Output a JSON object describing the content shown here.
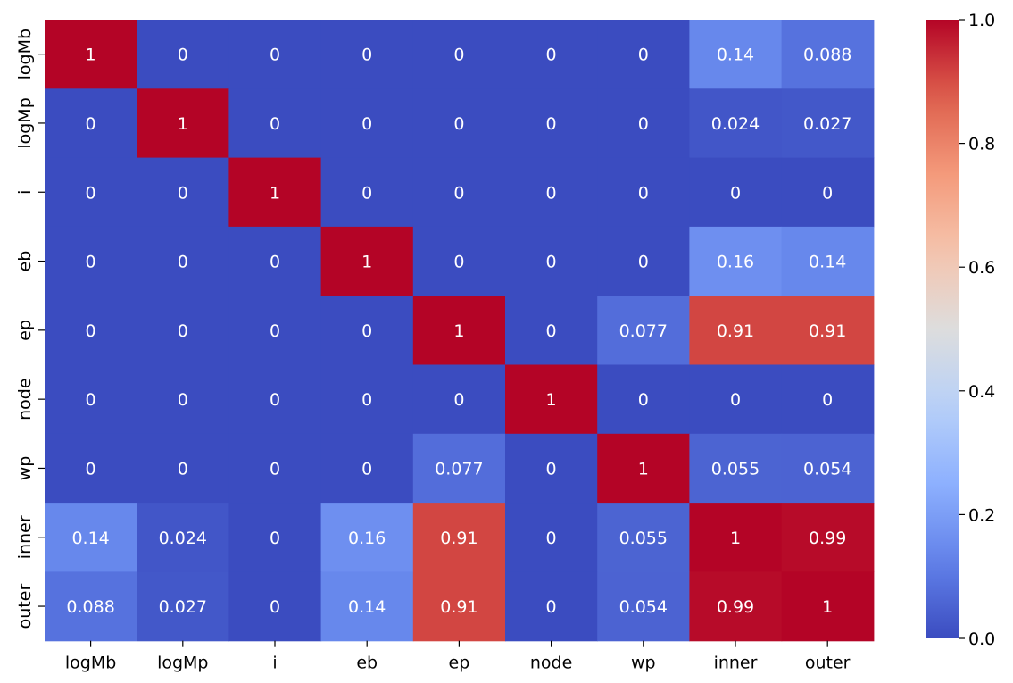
{
  "chart_data": {
    "type": "heatmap",
    "title": "",
    "xlabel": "",
    "ylabel": "",
    "colormap": "coolwarm",
    "vmin": 0.0,
    "vmax": 1.0,
    "x_categories": [
      "logMb",
      "logMp",
      "i",
      "eb",
      "ep",
      "node",
      "wp",
      "inner",
      "outer"
    ],
    "y_categories": [
      "logMb",
      "logMp",
      "i",
      "eb",
      "ep",
      "node",
      "wp",
      "inner",
      "outer"
    ],
    "values": [
      [
        1,
        0,
        0,
        0,
        0,
        0,
        0,
        0.14,
        0.088
      ],
      [
        0,
        1,
        0,
        0,
        0,
        0,
        0,
        0.024,
        0.027
      ],
      [
        0,
        0,
        1,
        0,
        0,
        0,
        0,
        0,
        0
      ],
      [
        0,
        0,
        0,
        1,
        0,
        0,
        0,
        0.16,
        0.14
      ],
      [
        0,
        0,
        0,
        0,
        1,
        0,
        0.077,
        0.91,
        0.91
      ],
      [
        0,
        0,
        0,
        0,
        0,
        1,
        0,
        0,
        0
      ],
      [
        0,
        0,
        0,
        0,
        0.077,
        0,
        1,
        0.055,
        0.054
      ],
      [
        0.14,
        0.024,
        0,
        0.16,
        0.91,
        0,
        0.055,
        1,
        0.99
      ],
      [
        0.088,
        0.027,
        0,
        0.14,
        0.91,
        0,
        0.054,
        0.99,
        1
      ]
    ],
    "annotations": [
      [
        "1",
        "0",
        "0",
        "0",
        "0",
        "0",
        "0",
        "0.14",
        "0.088"
      ],
      [
        "0",
        "1",
        "0",
        "0",
        "0",
        "0",
        "0",
        "0.024",
        "0.027"
      ],
      [
        "0",
        "0",
        "1",
        "0",
        "0",
        "0",
        "0",
        "0",
        "0"
      ],
      [
        "0",
        "0",
        "0",
        "1",
        "0",
        "0",
        "0",
        "0.16",
        "0.14"
      ],
      [
        "0",
        "0",
        "0",
        "0",
        "1",
        "0",
        "0.077",
        "0.91",
        "0.91"
      ],
      [
        "0",
        "0",
        "0",
        "0",
        "0",
        "1",
        "0",
        "0",
        "0"
      ],
      [
        "0",
        "0",
        "0",
        "0",
        "0.077",
        "0",
        "1",
        "0.055",
        "0.054"
      ],
      [
        "0.14",
        "0.024",
        "0",
        "0.16",
        "0.91",
        "0",
        "0.055",
        "1",
        "0.99"
      ],
      [
        "0.088",
        "0.027",
        "0",
        "0.14",
        "0.91",
        "0",
        "0.054",
        "0.99",
        "1"
      ]
    ],
    "colorbar": {
      "ticks": [
        0.0,
        0.2,
        0.4,
        0.6,
        0.8,
        1.0
      ],
      "tick_labels": [
        "0.0",
        "0.2",
        "0.4",
        "0.6",
        "0.8",
        "1.0"
      ]
    },
    "grid": false,
    "annotation_color": "#ffffff"
  }
}
